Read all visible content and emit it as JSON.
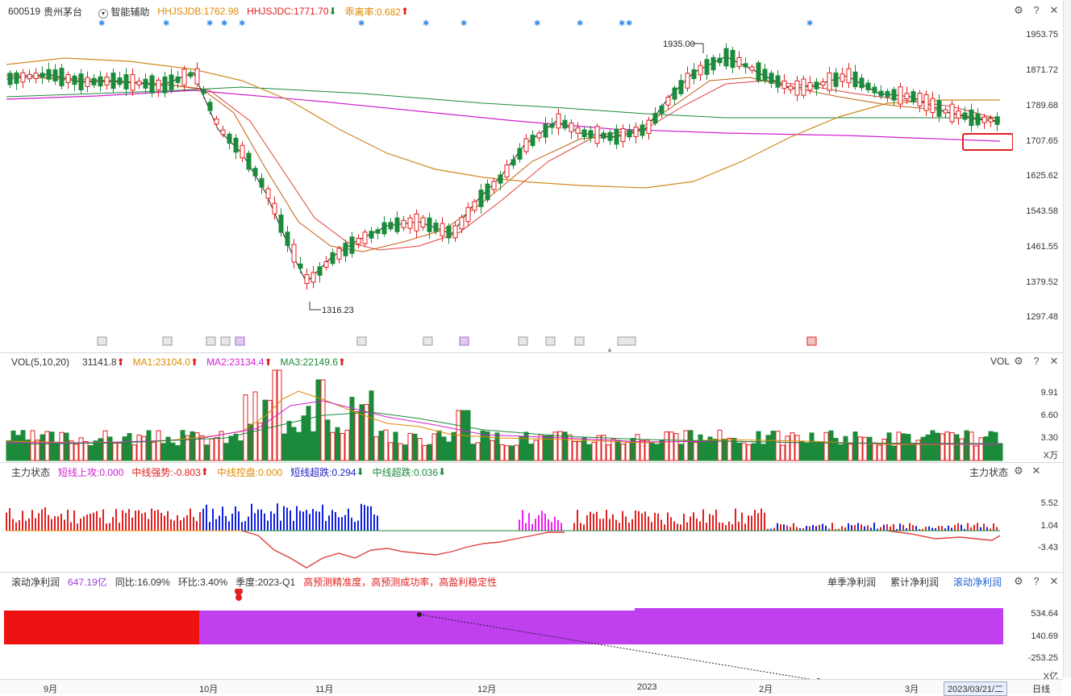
{
  "header": {
    "code": "600519",
    "name": "贵州茅台",
    "assist_label": "智能辅助",
    "ind1": "HHJSJDB:1762.98",
    "ind2": "HHJSJDC:1771.70",
    "ind3": "乖离率:0.682"
  },
  "main_axis": [
    "1953.75",
    "1871.72",
    "1789.68",
    "1707.65",
    "1625.62",
    "1543.58",
    "1461.55",
    "1379.52",
    "1297.48"
  ],
  "annotations": {
    "high": "1935.00",
    "low": "1316.23"
  },
  "vol": {
    "title": "VOL(5,10,20)",
    "value": "31141.8",
    "ma1": "MA1:23104.0",
    "ma2": "MA2:23134.4",
    "ma3": "MA3:22149.6",
    "right_label": "VOL",
    "axis": [
      "9.91",
      "6.60",
      "3.30"
    ],
    "unit": "X万"
  },
  "force": {
    "title": "主力状态",
    "items": [
      "短线上攻:0.000",
      "中线强势:-0.803",
      "中线控盘:0.000",
      "短线超跌:0.294",
      "中线超跌:0.036"
    ],
    "right_label": "主力状态",
    "axis": [
      "5.52",
      "1.04",
      "-3.43"
    ]
  },
  "profit": {
    "title": "滚动净利润",
    "value": "647.19亿",
    "yoy": "同比:16.09%",
    "qoq": "环比:3.40%",
    "season": "季度:2023-Q1",
    "note": "高预测精准度，高预测成功率，高盈利稳定性",
    "tabs": [
      "单季净利润",
      "累计净利润",
      "滚动净利润"
    ],
    "axis": [
      "534.64",
      "140.69",
      "-253.25"
    ],
    "unit": "X亿"
  },
  "x_labels": [
    "9月",
    "10月",
    "11月",
    "12月",
    "2023",
    "2月",
    "3月"
  ],
  "date_box": "2023/03/21/二",
  "period": "日线",
  "colors": {
    "up": "#e02020",
    "down": "#1b8a3a",
    "accent": "#2060d0",
    "purple": "#c040ff"
  }
}
